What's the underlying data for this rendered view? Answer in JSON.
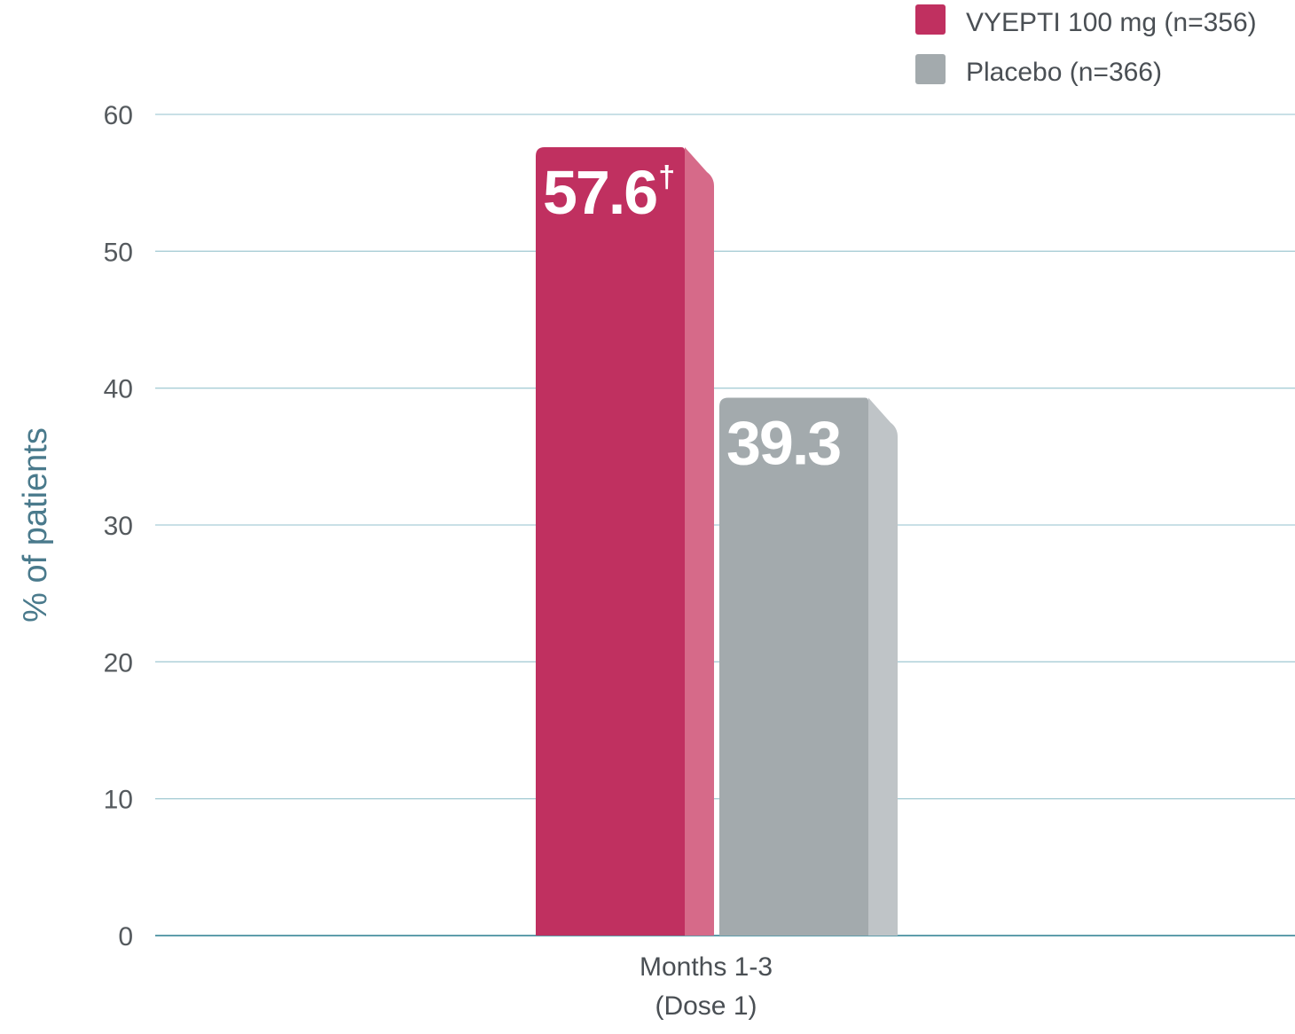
{
  "chart_data": {
    "type": "bar",
    "title": "",
    "xlabel": "",
    "ylabel": "% of patients",
    "ylim": [
      0,
      60
    ],
    "yticks": [
      0,
      10,
      20,
      30,
      40,
      50,
      60
    ],
    "grid": true,
    "legend_position": "top-right",
    "categories": [
      "Months 1-3 (Dose 1)"
    ],
    "category_lines": [
      [
        "Months 1-3",
        "(Dose 1)"
      ]
    ],
    "series": [
      {
        "name": "VYEPTI 100 mg (n=356)",
        "values": [
          57.6
        ],
        "labels": [
          "57.6"
        ],
        "label_suffix": "†",
        "color": "#c03060",
        "side_color": "#d66a89"
      },
      {
        "name": "Placebo (n=366)",
        "values": [
          39.3
        ],
        "labels": [
          "39.3"
        ],
        "label_suffix": "",
        "color": "#a3aaad",
        "side_color": "#bfc4c7"
      }
    ],
    "colors": {
      "grid": "#a9ced6",
      "axis": "#5e9dab",
      "ylabel": "#4a7a8c"
    }
  }
}
